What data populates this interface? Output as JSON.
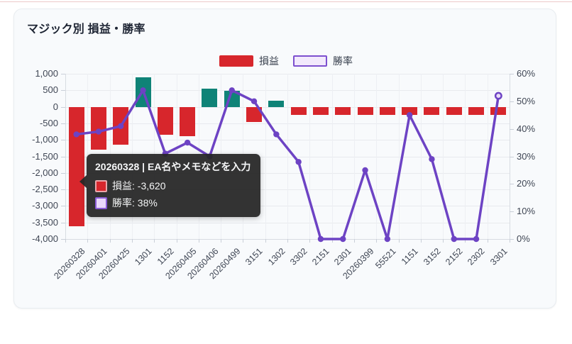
{
  "card": {
    "title": "マジック別 損益・勝率"
  },
  "legend": {
    "items": [
      {
        "label": "損益",
        "series_type": "bar"
      },
      {
        "label": "勝率",
        "series_type": "line"
      }
    ]
  },
  "colors": {
    "loss_red": "#d7262c",
    "profit_teal": "#0f8377",
    "win_rate_purple": "#6d43c4",
    "last_point_fill": "#e9ddf8",
    "legend_rate_fill": "#f2e9fc",
    "legend_rate_border": "#7d50cf",
    "tooltip_swatch_profit_fill": "#d7262c",
    "tooltip_swatch_profit_border": "#e9a7ab",
    "tooltip_swatch_rate_fill": "#ead9fb",
    "tooltip_swatch_rate_border": "#8a5cd6",
    "grid_line": "#e8eaee",
    "axis_text": "#3f4654",
    "title_text": "#1d2433"
  },
  "chart_data": {
    "type": "bar",
    "title": "マジック別 損益・勝率",
    "categories": [
      "20260328",
      "20260401",
      "20260425",
      "1301",
      "1152",
      "20260405",
      "20260406",
      "20260499",
      "3151",
      "1302",
      "3302",
      "2151",
      "2301",
      "20260399",
      "55521",
      "1151",
      "3152",
      "2152",
      "2302",
      "3301"
    ],
    "series": [
      {
        "name": "損益",
        "type": "bar",
        "y_axis": "left",
        "values": [
          -3620,
          -1300,
          -1150,
          900,
          -850,
          -880,
          550,
          490,
          -450,
          180,
          -250,
          -250,
          -250,
          -250,
          -250,
          -250,
          -250,
          -250,
          -250,
          -250
        ]
      },
      {
        "name": "勝率",
        "type": "line",
        "y_axis": "right",
        "unit": "%",
        "values": [
          38,
          39,
          41,
          54,
          31,
          35,
          30,
          54,
          50,
          38,
          28,
          0,
          0,
          25,
          0,
          45,
          29,
          0,
          0,
          52
        ]
      }
    ],
    "left_axis": {
      "min": -4000,
      "max": 1000,
      "step": 500,
      "tick_labels": [
        "1,000",
        "500",
        "0",
        "-500",
        "-1,000",
        "-1,500",
        "-2,000",
        "-2,500",
        "-3,000",
        "-3,500",
        "-4,000"
      ]
    },
    "right_axis": {
      "min": 0,
      "max": 60,
      "step": 10,
      "tick_labels": [
        "60%",
        "50%",
        "40%",
        "30%",
        "20%",
        "10%",
        "0%"
      ]
    },
    "grid": true,
    "legend_position": "top-center"
  },
  "tooltip": {
    "title": "20260328 | EA名やメモなどを入力",
    "rows": [
      {
        "series": "損益",
        "text": "損益: -3,620"
      },
      {
        "series": "勝率",
        "text": "勝率: 38%"
      }
    ]
  }
}
